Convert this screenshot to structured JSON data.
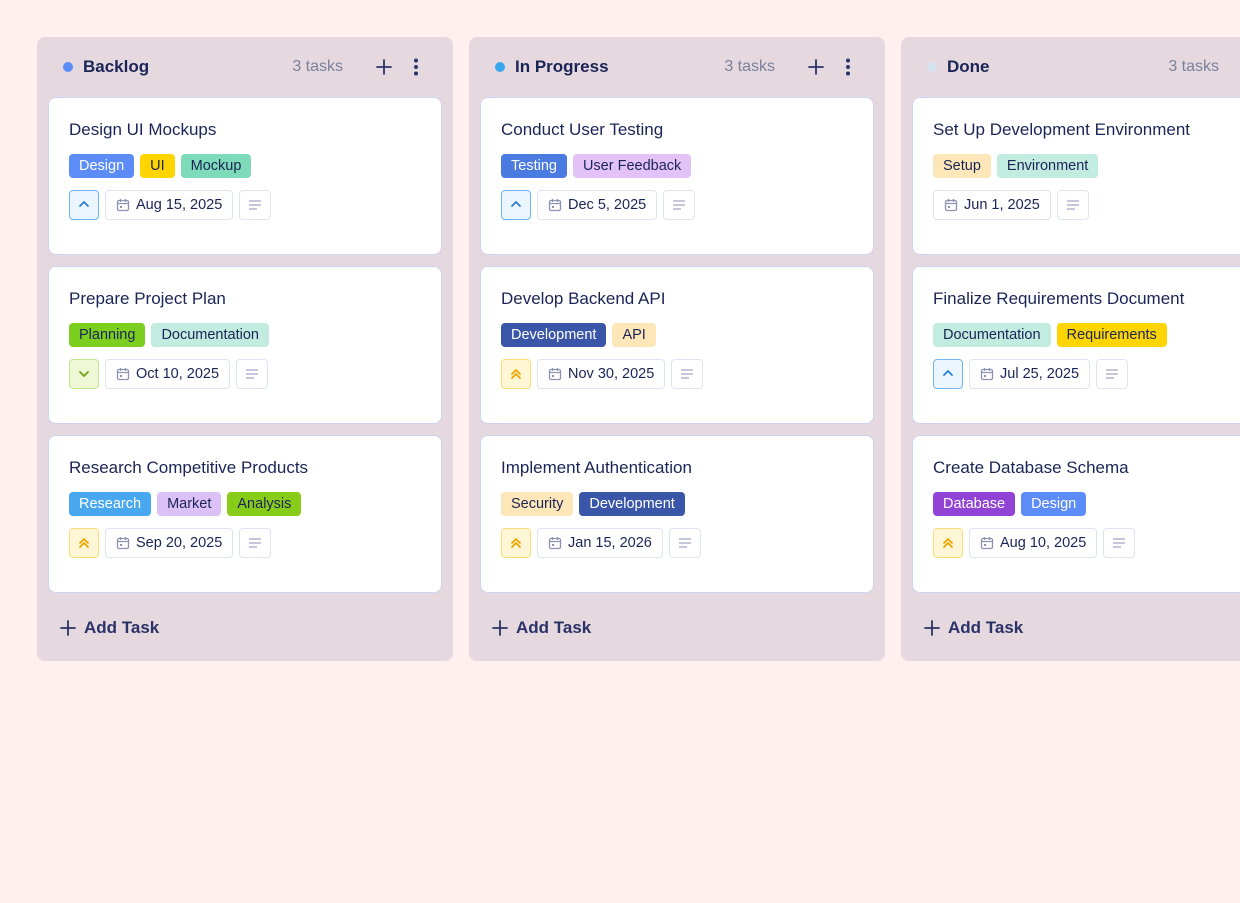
{
  "columns": [
    {
      "title": "Backlog",
      "count": "3 tasks",
      "dot": "#5b8cf7",
      "show_actions": true,
      "add_label": "Add Task",
      "cards": [
        {
          "title": "Design UI Mockups",
          "priority": "high",
          "date": "Aug 15, 2025",
          "tags": [
            {
              "label": "Design",
              "bg": "#5b8cf7",
              "fg": "#ffffff"
            },
            {
              "label": "UI",
              "bg": "#ffd500",
              "fg": "#1b2456"
            },
            {
              "label": "Mockup",
              "bg": "#7ddbb9",
              "fg": "#1b2456"
            }
          ]
        },
        {
          "title": "Prepare Project Plan",
          "priority": "low",
          "date": "Oct 10, 2025",
          "tags": [
            {
              "label": "Planning",
              "bg": "#7ccf1f",
              "fg": "#1b2456"
            },
            {
              "label": "Documentation",
              "bg": "#c2ecdf",
              "fg": "#1b2456"
            }
          ]
        },
        {
          "title": "Research Competitive Products",
          "priority": "urgent",
          "date": "Sep 20, 2025",
          "tags": [
            {
              "label": "Research",
              "bg": "#47a8ef",
              "fg": "#ffffff"
            },
            {
              "label": "Market",
              "bg": "#dcc1f7",
              "fg": "#1b2456"
            },
            {
              "label": "Analysis",
              "bg": "#88cc1a",
              "fg": "#1b2456"
            }
          ]
        }
      ]
    },
    {
      "title": "In Progress",
      "count": "3 tasks",
      "dot": "#3aa7ef",
      "show_actions": true,
      "add_label": "Add Task",
      "cards": [
        {
          "title": "Conduct User Testing",
          "priority": "high",
          "date": "Dec 5, 2025",
          "tags": [
            {
              "label": "Testing",
              "bg": "#4a7be0",
              "fg": "#ffffff"
            },
            {
              "label": "User Feedback",
              "bg": "#e2c2f7",
              "fg": "#1b2456"
            }
          ]
        },
        {
          "title": "Develop Backend API",
          "priority": "urgent",
          "date": "Nov 30, 2025",
          "tags": [
            {
              "label": "Development",
              "bg": "#3a56a8",
              "fg": "#ffffff"
            },
            {
              "label": "API",
              "bg": "#fde7b8",
              "fg": "#1b2456"
            }
          ]
        },
        {
          "title": "Implement Authentication",
          "priority": "urgent",
          "date": "Jan 15, 2026",
          "tags": [
            {
              "label": "Security",
              "bg": "#fde7b8",
              "fg": "#1b2456"
            },
            {
              "label": "Development",
              "bg": "#3a56a8",
              "fg": "#ffffff"
            }
          ]
        }
      ]
    },
    {
      "title": "Done",
      "count": "3 tasks",
      "dot": "#d6e4f0",
      "show_actions": false,
      "add_label": "Add Task",
      "cards": [
        {
          "title": "Set Up Development Environment",
          "priority": "none",
          "date": "Jun 1, 2025",
          "tags": [
            {
              "label": "Setup",
              "bg": "#fde7b8",
              "fg": "#1b2456"
            },
            {
              "label": "Environment",
              "bg": "#c2ecdf",
              "fg": "#1b2456"
            }
          ]
        },
        {
          "title": "Finalize Requirements Document",
          "priority": "high",
          "date": "Jul 25, 2025",
          "tags": [
            {
              "label": "Documentation",
              "bg": "#c2ecdf",
              "fg": "#1b2456"
            },
            {
              "label": "Requirements",
              "bg": "#ffd500",
              "fg": "#1b2456"
            }
          ]
        },
        {
          "title": "Create Database Schema",
          "priority": "urgent",
          "date": "Aug 10, 2025",
          "tags": [
            {
              "label": "Database",
              "bg": "#9143d6",
              "fg": "#ffffff"
            },
            {
              "label": "Design",
              "bg": "#5b8cf7",
              "fg": "#ffffff"
            }
          ]
        }
      ]
    }
  ]
}
